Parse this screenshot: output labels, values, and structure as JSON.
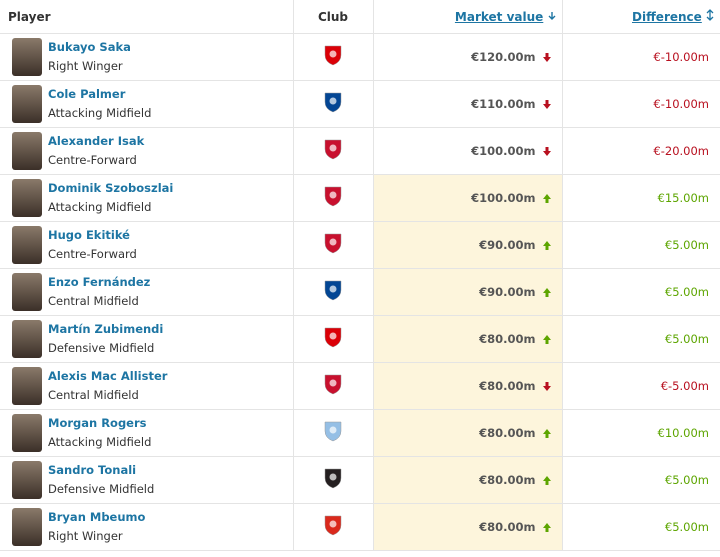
{
  "header": {
    "player": "Player",
    "club": "Club",
    "market_value": "Market value",
    "difference": "Difference"
  },
  "rows": [
    {
      "name": "Bukayo Saka",
      "position": "Right Winger",
      "market_value": "€120.00m",
      "difference": "€-10.00m",
      "trend": "down",
      "highlighted": false,
      "crest_color": "#db0007"
    },
    {
      "name": "Cole Palmer",
      "position": "Attacking Midfield",
      "market_value": "€110.00m",
      "difference": "€-10.00m",
      "trend": "down",
      "highlighted": false,
      "crest_color": "#034694"
    },
    {
      "name": "Alexander Isak",
      "position": "Centre-Forward",
      "market_value": "€100.00m",
      "difference": "€-20.00m",
      "trend": "down",
      "highlighted": false,
      "crest_color": "#c8102e"
    },
    {
      "name": "Dominik Szoboszlai",
      "position": "Attacking Midfield",
      "market_value": "€100.00m",
      "difference": "€15.00m",
      "trend": "up",
      "highlighted": true,
      "crest_color": "#c8102e"
    },
    {
      "name": "Hugo Ekitiké",
      "position": "Centre-Forward",
      "market_value": "€90.00m",
      "difference": "€5.00m",
      "trend": "up",
      "highlighted": true,
      "crest_color": "#c8102e"
    },
    {
      "name": "Enzo Fernández",
      "position": "Central Midfield",
      "market_value": "€90.00m",
      "difference": "€5.00m",
      "trend": "up",
      "highlighted": true,
      "crest_color": "#034694"
    },
    {
      "name": "Martín Zubimendi",
      "position": "Defensive Midfield",
      "market_value": "€80.00m",
      "difference": "€5.00m",
      "trend": "up",
      "highlighted": true,
      "crest_color": "#db0007"
    },
    {
      "name": "Alexis Mac Allister",
      "position": "Central Midfield",
      "market_value": "€80.00m",
      "difference": "€-5.00m",
      "trend": "down",
      "highlighted": true,
      "crest_color": "#c8102e"
    },
    {
      "name": "Morgan Rogers",
      "position": "Attacking Midfield",
      "market_value": "€80.00m",
      "difference": "€10.00m",
      "trend": "up",
      "highlighted": true,
      "crest_color": "#95bfe5"
    },
    {
      "name": "Sandro Tonali",
      "position": "Defensive Midfield",
      "market_value": "€80.00m",
      "difference": "€5.00m",
      "trend": "up",
      "highlighted": true,
      "crest_color": "#241f20"
    },
    {
      "name": "Bryan Mbeumo",
      "position": "Right Winger",
      "market_value": "€80.00m",
      "difference": "€5.00m",
      "trend": "up",
      "highlighted": true,
      "crest_color": "#da291c"
    }
  ]
}
